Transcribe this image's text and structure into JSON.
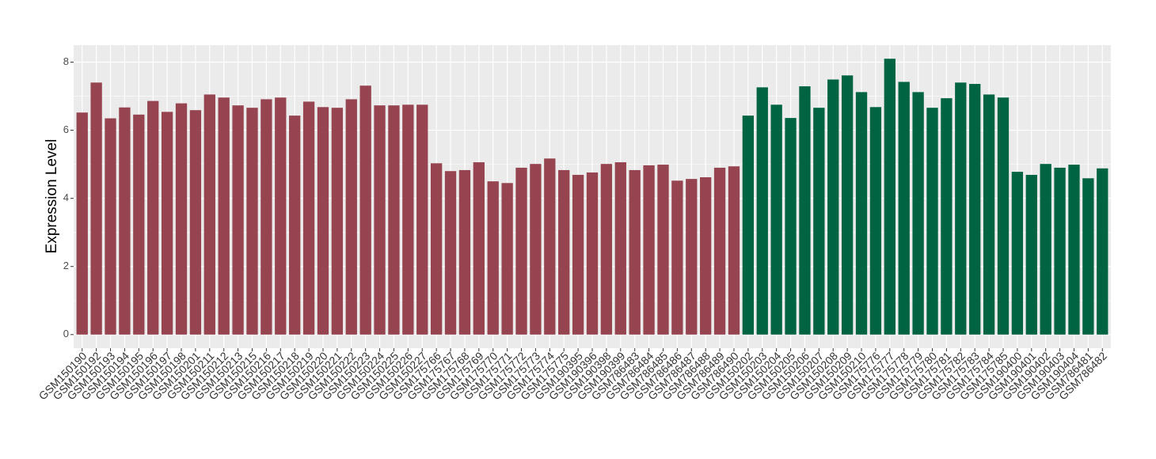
{
  "chart_data": {
    "type": "bar",
    "y_label": "Expression Level",
    "categories": [
      "GSM150190",
      "GSM150192",
      "GSM150193",
      "GSM150194",
      "GSM150195",
      "GSM150196",
      "GSM150197",
      "GSM150198",
      "GSM150201",
      "GSM150211",
      "GSM150212",
      "GSM150213",
      "GSM150215",
      "GSM150216",
      "GSM150217",
      "GSM150218",
      "GSM150219",
      "GSM150220",
      "GSM150221",
      "GSM150222",
      "GSM150223",
      "GSM150224",
      "GSM150225",
      "GSM150226",
      "GSM150227",
      "GSM175766",
      "GSM175767",
      "GSM175768",
      "GSM175769",
      "GSM175770",
      "GSM175771",
      "GSM175772",
      "GSM175773",
      "GSM175774",
      "GSM175775",
      "GSM190395",
      "GSM190396",
      "GSM190398",
      "GSM190399",
      "GSM786483",
      "GSM786484",
      "GSM786485",
      "GSM786486",
      "GSM786487",
      "GSM786488",
      "GSM786489",
      "GSM786490",
      "GSM150202",
      "GSM150203",
      "GSM150204",
      "GSM150205",
      "GSM150206",
      "GSM150207",
      "GSM150208",
      "GSM150209",
      "GSM150210",
      "GSM175776",
      "GSM175777",
      "GSM175778",
      "GSM175779",
      "GSM175780",
      "GSM175781",
      "GSM175782",
      "GSM175783",
      "GSM175784",
      "GSM175785",
      "GSM190400",
      "GSM190401",
      "GSM190402",
      "GSM190403",
      "GSM190404",
      "GSM786481",
      "GSM786482"
    ],
    "series": [
      {
        "color": "#964450",
        "values": [
          6.52,
          7.4,
          6.35,
          6.67,
          6.46,
          6.86,
          6.54,
          6.79,
          6.59,
          7.05,
          6.96,
          6.73,
          6.66,
          6.91,
          6.96,
          6.43,
          6.84,
          6.68,
          6.66,
          6.91,
          7.31,
          6.73,
          6.73,
          6.75,
          6.75,
          5.03,
          4.8,
          4.83,
          5.06,
          4.5,
          4.45,
          4.9,
          5.01,
          5.17,
          4.83,
          4.69,
          4.76,
          5.01,
          5.06,
          4.83,
          4.97,
          4.99,
          4.52,
          4.57,
          4.62,
          4.9,
          4.94,
          null,
          null,
          null,
          null,
          null,
          null,
          null,
          null,
          null,
          null,
          null,
          null,
          null,
          null,
          null,
          null,
          null,
          null,
          null,
          null,
          null,
          null,
          null,
          null,
          null,
          null
        ]
      },
      {
        "color": "#006442",
        "values": [
          null,
          null,
          null,
          null,
          null,
          null,
          null,
          null,
          null,
          null,
          null,
          null,
          null,
          null,
          null,
          null,
          null,
          null,
          null,
          null,
          null,
          null,
          null,
          null,
          null,
          null,
          null,
          null,
          null,
          null,
          null,
          null,
          null,
          null,
          null,
          null,
          null,
          null,
          null,
          null,
          null,
          null,
          null,
          null,
          null,
          null,
          null,
          6.43,
          7.26,
          6.75,
          6.36,
          7.29,
          6.66,
          7.49,
          7.61,
          7.12,
          6.68,
          8.1,
          7.42,
          7.12,
          6.66,
          6.94,
          7.4,
          7.36,
          7.05,
          6.96,
          4.78,
          4.69,
          5.01,
          4.9,
          4.99,
          4.59,
          4.88
        ]
      }
    ],
    "ylim": [
      -0.4,
      8.5
    ],
    "yticks": [
      0,
      2,
      4,
      6,
      8
    ],
    "grid": true
  }
}
